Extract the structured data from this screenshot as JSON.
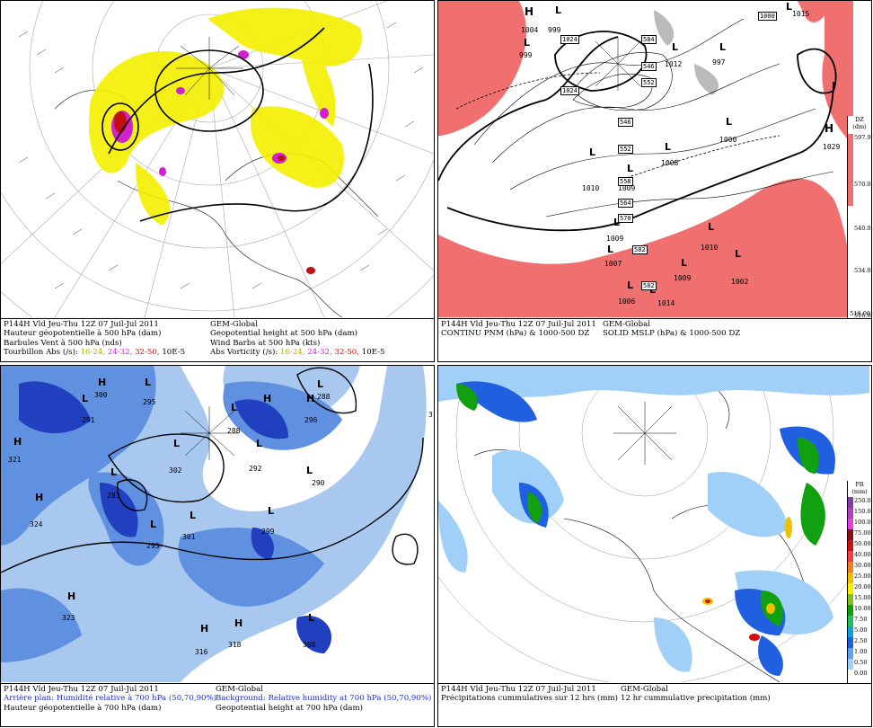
{
  "panels": {
    "p1": {
      "caption": {
        "run": "P144H Vld Jeu-Thu 12Z 07 Juil-Jul 2011",
        "model": "GEM-Global",
        "fr1": "Hauteur géopotentielle à 500 hPa (dam)",
        "en1": "Geopotential height at 500 hPa (dam)",
        "fr2": "Barbules Vent à 500 hPa (nds)",
        "en2": "Wind Barbs at 500 hPa (kts)",
        "fr3": "Tourbillon Abs (/s):",
        "en3": "Abs Vorticity (/s):",
        "v1": "16-24,",
        "v2": "24-32,",
        "v3": "32-50,",
        "unit": "10E-5"
      }
    },
    "p2": {
      "caption": {
        "run": "P144H Vld Jeu-Thu 12Z 07 Juil-Jul 2011",
        "model": "GEM-Global",
        "fr1": "CONTINU PNM (hPa) & 1000-500 DZ",
        "en1": "SOLID MSLP (hPa) & 1000-500 DZ"
      },
      "legend_title": "DZ (dm)",
      "legend": [
        "597.94",
        "570.00",
        "540.00",
        "534.00",
        "516.00",
        "510.00"
      ],
      "highs": [
        "1004",
        "1029"
      ],
      "lows": [
        "999",
        "999",
        "1012",
        "997",
        "1015",
        "1000",
        "1008",
        "1010",
        "1009",
        "1009",
        "1007",
        "1010",
        "1009",
        "1002",
        "1006",
        "1014"
      ],
      "thickness": [
        "1024",
        "1024",
        "1000",
        "584",
        "546",
        "552",
        "546",
        "552",
        "558",
        "564",
        "570",
        "582",
        "582"
      ]
    },
    "p3": {
      "caption": {
        "run": "P144H Vld Jeu-Thu 12Z 07 Juil-Jul 2011",
        "model": "GEM-Global",
        "fr1": "Arrière plan: Humidité relative à 700 hPa (50,70,90%)",
        "en1": "Background: Relative humidity at 700 hPa (50,70,90%)",
        "fr2": "Hauteur géopotentielle à 700 hPa (dam)",
        "en2": "Geopotential height at 700 hPa (dam)"
      },
      "highs": [
        "300",
        "321",
        "324",
        "323",
        "316",
        "318",
        "296"
      ],
      "lows": [
        "291",
        "295",
        "288",
        "302",
        "292",
        "290",
        "283",
        "293",
        "301",
        "299",
        "308",
        "288"
      ],
      "edge": "3"
    },
    "p4": {
      "caption": {
        "run": "P144H Vld Jeu-Thu 12Z 07 Juil-Jul 2011",
        "model": "GEM-Global",
        "fr1": "Précipitations cummulatives sur 12 hrs (mm)",
        "en1": "12 hr cummulative precipitation (mm)"
      },
      "legend_title": "PR (mm)",
      "legend": [
        "250.00",
        "150.00",
        "100.00",
        "75.00",
        "50.00",
        "40.00",
        "30.00",
        "25.00",
        "20.00",
        "15.00",
        "10.00",
        "7.50",
        "5.00",
        "2.50",
        "1.00",
        "0.50",
        "0.00"
      ],
      "legend_colors": [
        "#8a3aa8",
        "#b040c0",
        "#e040e0",
        "#8a1010",
        "#d01010",
        "#f04040",
        "#f08020",
        "#f0c000",
        "#f8f000",
        "#80c020",
        "#10a010",
        "#20c060",
        "#10a0e0",
        "#2060e0",
        "#60a0f0",
        "#a0d0f8",
        "#ffffff"
      ]
    }
  },
  "colors": {
    "thickness_warm": "#f07070",
    "humidity_light": "#a8c8f0",
    "humidity_mid": "#6090e0",
    "humidity_dark": "#2040c0",
    "vort_yellow": "#f4f000",
    "vort_magenta": "#d020d0",
    "vort_red": "#c01010"
  }
}
